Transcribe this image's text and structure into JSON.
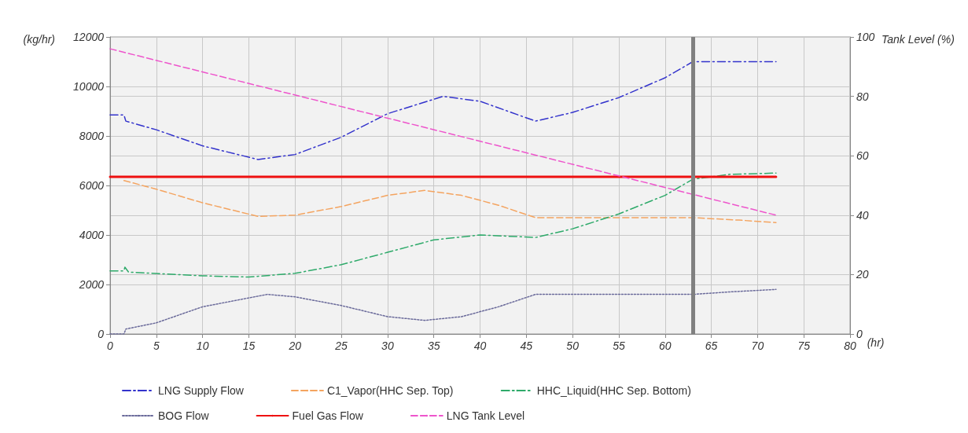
{
  "chart_data": {
    "type": "line",
    "xlabel": "(hr)",
    "ylabel": "(kg/hr)",
    "y2label": "Tank Level (%)",
    "xlim": [
      0,
      80
    ],
    "xticks": [
      0,
      5,
      10,
      15,
      20,
      25,
      30,
      35,
      40,
      45,
      50,
      55,
      60,
      65,
      70,
      75,
      80
    ],
    "ylim": [
      0,
      12000
    ],
    "yticks": [
      0,
      2000,
      4000,
      6000,
      8000,
      10000,
      12000
    ],
    "y2lim": [
      0,
      100
    ],
    "y2ticks": [
      0,
      20,
      40,
      60,
      80,
      100
    ],
    "grid": true,
    "legend": "bottom",
    "marker": "none",
    "ref_lines": [
      {
        "axis": "x",
        "value": 63,
        "color": "#808080",
        "line_style": "solid"
      }
    ],
    "series": [
      {
        "name": "LNG Supply Flow",
        "color": "#3333cc",
        "line_style": "dashed",
        "x": [
          0,
          1.5,
          1.7,
          5,
          10,
          16,
          20,
          25,
          30,
          36,
          40,
          46,
          50,
          55,
          60,
          63,
          72
        ],
        "values": [
          8850,
          8850,
          8600,
          8250,
          7600,
          7050,
          7250,
          7950,
          8900,
          9600,
          9400,
          8600,
          8950,
          9550,
          10350,
          11000,
          11000
        ]
      },
      {
        "name": "C1_Vapor(HHC Sep. Top)",
        "color": "#f4a460",
        "line_style": "dashed",
        "x": [
          1.5,
          5,
          10,
          16,
          20,
          25,
          30,
          34,
          38,
          42,
          46,
          55,
          63,
          68,
          72
        ],
        "values": [
          6200,
          5850,
          5300,
          4750,
          4800,
          5150,
          5600,
          5800,
          5600,
          5200,
          4700,
          4700,
          4700,
          4600,
          4500
        ]
      },
      {
        "name": "HHC_Liquid(HHC Sep. Bottom)",
        "color": "#2eaa6a",
        "line_style": "dashed",
        "x": [
          0,
          1.5,
          1.6,
          2,
          10,
          15,
          20,
          25,
          30,
          35,
          40,
          46,
          50,
          55,
          60,
          63,
          67,
          72
        ],
        "values": [
          2550,
          2550,
          2700,
          2500,
          2350,
          2300,
          2450,
          2800,
          3300,
          3800,
          4000,
          3900,
          4250,
          4850,
          5600,
          6250,
          6450,
          6500
        ]
      },
      {
        "name": "BOG Flow",
        "color": "#6a6a9a",
        "line_style": "dotted",
        "x": [
          0,
          1.5,
          1.7,
          5,
          10,
          17,
          20,
          25,
          30,
          34,
          38,
          42,
          46,
          55,
          63,
          67,
          72
        ],
        "values": [
          0,
          0,
          200,
          450,
          1100,
          1600,
          1500,
          1150,
          700,
          550,
          700,
          1100,
          1600,
          1600,
          1600,
          1700,
          1800
        ]
      },
      {
        "name": "Fuel Gas Flow",
        "color": "#ee1111",
        "line_style": "solid",
        "x": [
          0,
          72
        ],
        "values": [
          6350,
          6350
        ]
      },
      {
        "name": "LNG Tank Level",
        "color": "#ee55cc",
        "line_style": "dashed",
        "axis": "y2",
        "x": [
          0,
          72
        ],
        "values": [
          96,
          40
        ]
      }
    ]
  }
}
